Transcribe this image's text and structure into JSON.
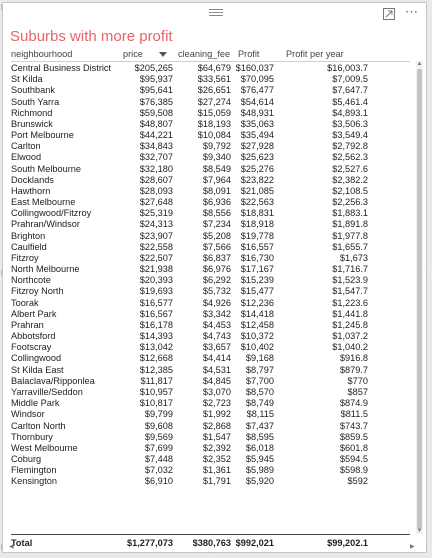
{
  "visual": {
    "title": "Suburbs with more profit",
    "icons": [
      "drag-grip-icon",
      "focus-mode-icon",
      "more-options-icon",
      "sort-descending-icon"
    ],
    "title_color": "#e8626b"
  },
  "table": {
    "columns": [
      "neighbourhood",
      "price",
      "cleaning_fee",
      "Profit",
      "Profit per year"
    ],
    "sorted_column": "price",
    "rows": [
      [
        "Central Business District",
        "$205,265",
        "$64,679",
        "$160,037",
        "$16,003.7"
      ],
      [
        "St Kilda",
        "$95,937",
        "$33,561",
        "$70,095",
        "$7,009.5"
      ],
      [
        "Southbank",
        "$95,641",
        "$26,651",
        "$76,477",
        "$7,647.7"
      ],
      [
        "South Yarra",
        "$76,385",
        "$27,274",
        "$54,614",
        "$5,461.4"
      ],
      [
        "Richmond",
        "$59,508",
        "$15,059",
        "$48,931",
        "$4,893.1"
      ],
      [
        "Brunswick",
        "$48,807",
        "$18,193",
        "$35,063",
        "$3,506.3"
      ],
      [
        "Port Melbourne",
        "$44,221",
        "$10,084",
        "$35,494",
        "$3,549.4"
      ],
      [
        "Carlton",
        "$34,843",
        "$9,792",
        "$27,928",
        "$2,792.8"
      ],
      [
        "Elwood",
        "$32,707",
        "$9,340",
        "$25,623",
        "$2,562.3"
      ],
      [
        "South Melbourne",
        "$32,180",
        "$8,549",
        "$25,276",
        "$2,527.6"
      ],
      [
        "Docklands",
        "$28,607",
        "$7,964",
        "$23,822",
        "$2,382.2"
      ],
      [
        "Hawthorn",
        "$28,093",
        "$8,091",
        "$21,085",
        "$2,108.5"
      ],
      [
        "East Melbourne",
        "$27,648",
        "$6,936",
        "$22,563",
        "$2,256.3"
      ],
      [
        "Collingwood/Fitzroy",
        "$25,319",
        "$8,556",
        "$18,831",
        "$1,883.1"
      ],
      [
        "Prahran/Windsor",
        "$24,313",
        "$7,234",
        "$18,918",
        "$1,891.8"
      ],
      [
        "Brighton",
        "$23,907",
        "$5,208",
        "$19,778",
        "$1,977.8"
      ],
      [
        "Caulfield",
        "$22,558",
        "$7,566",
        "$16,557",
        "$1,655.7"
      ],
      [
        "Fitzroy",
        "$22,507",
        "$6,837",
        "$16,730",
        "$1,673"
      ],
      [
        "North Melbourne",
        "$21,938",
        "$6,976",
        "$17,167",
        "$1,716.7"
      ],
      [
        "Northcote",
        "$20,393",
        "$6,292",
        "$15,239",
        "$1,523.9"
      ],
      [
        "Fitzroy North",
        "$19,693",
        "$5,732",
        "$15,477",
        "$1,547.7"
      ],
      [
        "Toorak",
        "$16,577",
        "$4,926",
        "$12,236",
        "$1,223.6"
      ],
      [
        "Albert Park",
        "$16,567",
        "$3,342",
        "$14,418",
        "$1,441.8"
      ],
      [
        "Prahran",
        "$16,178",
        "$4,453",
        "$12,458",
        "$1,245.8"
      ],
      [
        "Abbotsford",
        "$14,393",
        "$4,743",
        "$10,372",
        "$1,037.2"
      ],
      [
        "Footscray",
        "$13,042",
        "$3,657",
        "$10,402",
        "$1,040.2"
      ],
      [
        "Collingwood",
        "$12,668",
        "$4,414",
        "$9,168",
        "$916.8"
      ],
      [
        "St Kilda East",
        "$12,385",
        "$4,531",
        "$8,797",
        "$879.7"
      ],
      [
        "Balaclava/Ripponlea",
        "$11,817",
        "$4,845",
        "$7,700",
        "$770"
      ],
      [
        "Yarraville/Seddon",
        "$10,957",
        "$3,070",
        "$8,570",
        "$857"
      ],
      [
        "Middle Park",
        "$10,817",
        "$2,723",
        "$8,749",
        "$874.9"
      ],
      [
        "Windsor",
        "$9,799",
        "$1,992",
        "$8,115",
        "$811.5"
      ],
      [
        "Carlton North",
        "$9,608",
        "$2,868",
        "$7,437",
        "$743.7"
      ],
      [
        "Thornbury",
        "$9,569",
        "$1,547",
        "$8,595",
        "$859.5"
      ],
      [
        "West Melbourne",
        "$7,699",
        "$2,392",
        "$6,018",
        "$601.8"
      ],
      [
        "Coburg",
        "$7,448",
        "$2,352",
        "$5,945",
        "$594.5"
      ],
      [
        "Flemington",
        "$7,032",
        "$1,361",
        "$5,989",
        "$598.9"
      ],
      [
        "Kensington",
        "$6,910",
        "$1,791",
        "$5,920",
        "$592"
      ]
    ],
    "total": [
      "Total",
      "$1,277,073",
      "$380,763",
      "$992,021",
      "$99,202.1"
    ]
  }
}
